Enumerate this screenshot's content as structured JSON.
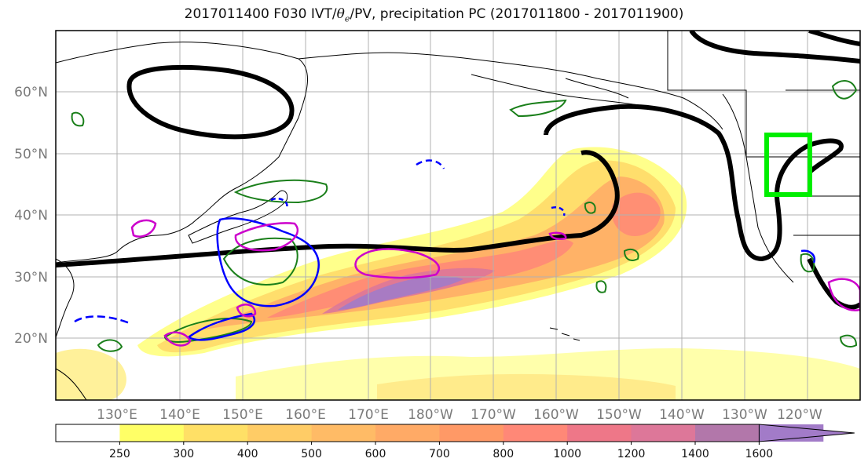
{
  "title": {
    "prefix": "2017011400 F030 IVT/",
    "theta_symbol": "θ",
    "theta_sub": "e",
    "suffix": "/PV, precipitation PC (2017011800 - 2017011900)"
  },
  "map": {
    "lat_labels": [
      "20°N",
      "30°N",
      "40°N",
      "50°N",
      "60°N"
    ],
    "lon_labels": [
      "130°E",
      "140°E",
      "150°E",
      "160°E",
      "170°E",
      "180°W",
      "170°W",
      "160°W",
      "150°W",
      "140°W",
      "130°W",
      "120°W"
    ],
    "ocean_color": "#ffffff",
    "land_line_color": "#000000",
    "grid_color": "#b0b0b0",
    "pv_contour_color": "#000000",
    "theta_e_positive_color": "#1a7f1a",
    "theta_e_negative_color": "#0000ff",
    "precip_contour_color": "#cc00cc",
    "highlight_box_color": "#00ee00"
  },
  "colorbar": {
    "ticks": [
      "250",
      "300",
      "400",
      "500",
      "600",
      "700",
      "800",
      "1000",
      "1200",
      "1400",
      "1600"
    ],
    "colors": [
      "#ffffff",
      "#ffff66",
      "#ffe066",
      "#ffcc66",
      "#ffbb66",
      "#ffaa66",
      "#ff9966",
      "#ff8877",
      "#ee7788",
      "#dd7799",
      "#b277aa",
      "#a27bc8"
    ],
    "extend": "max"
  }
}
